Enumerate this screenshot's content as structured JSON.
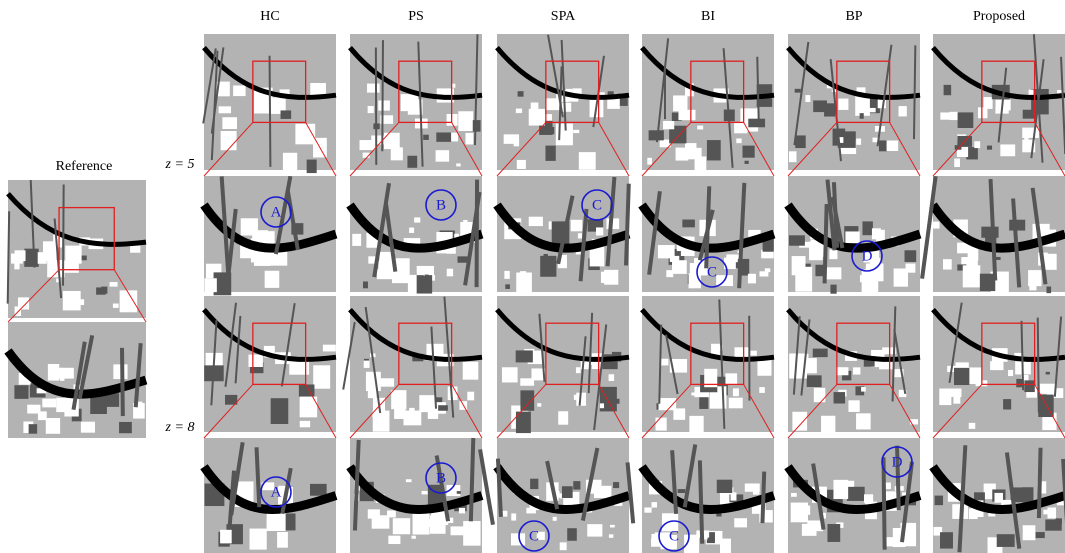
{
  "columns": [
    "HC",
    "PS",
    "SPA",
    "BI",
    "BP",
    "Proposed"
  ],
  "reference": "Reference",
  "rows": [
    "z = 5",
    "z = 8"
  ],
  "annotations": {
    "row1": [
      "A",
      "B",
      "C",
      "C",
      "D"
    ],
    "row2": [
      "A",
      "B",
      "C",
      "C",
      "D"
    ]
  }
}
